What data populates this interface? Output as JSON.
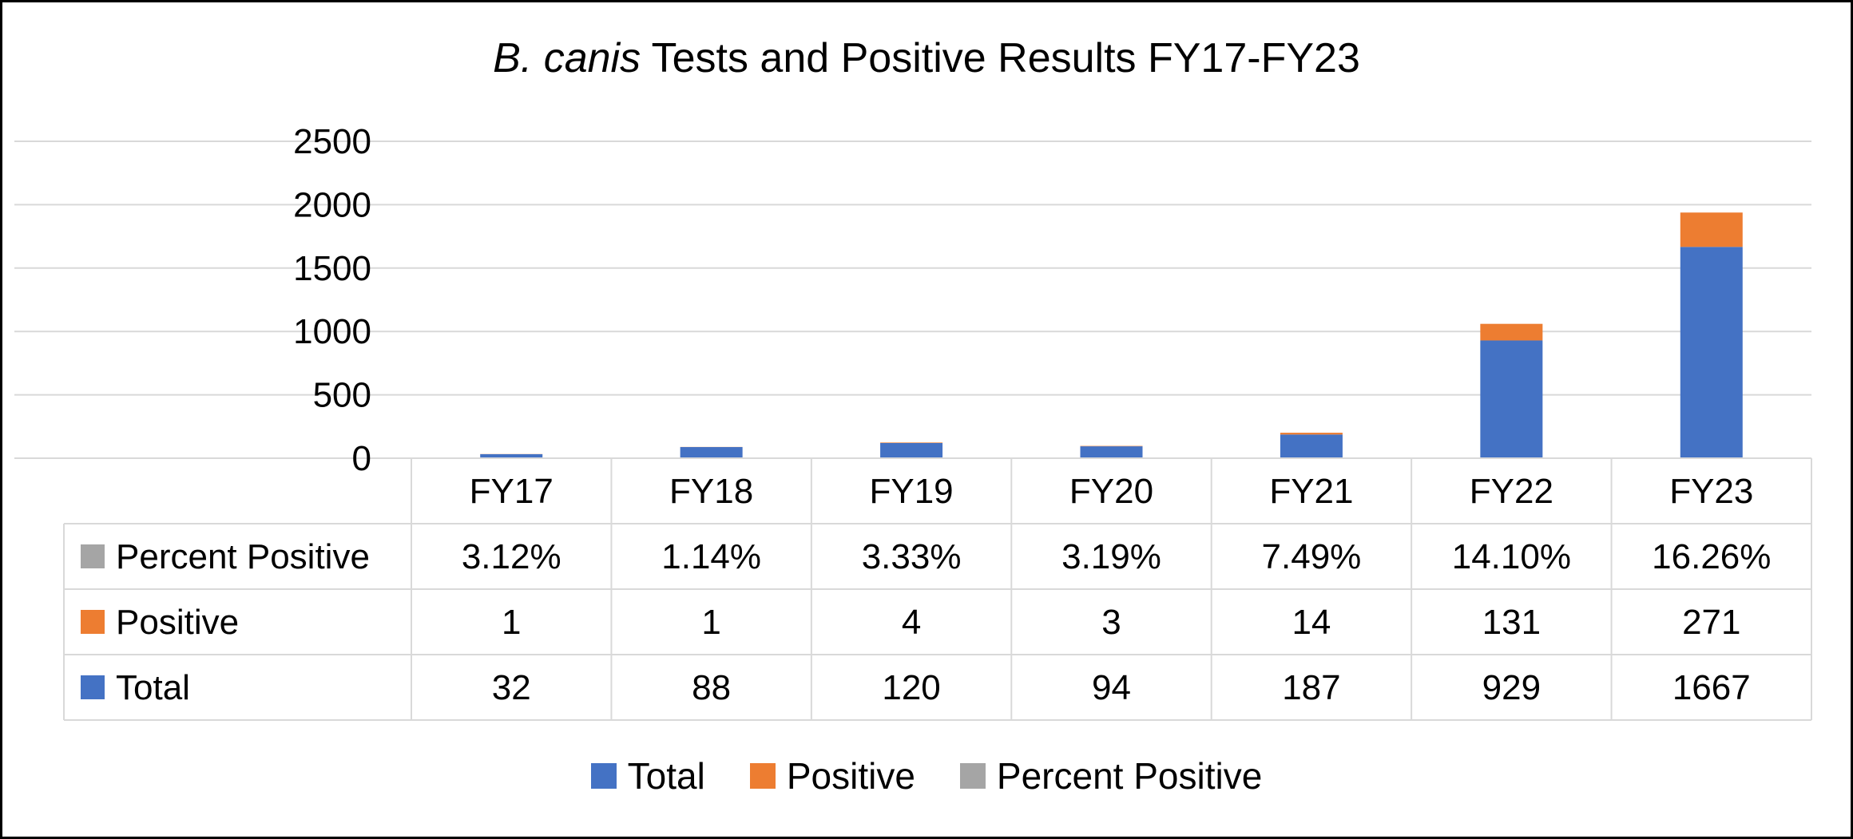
{
  "chart_data": {
    "type": "bar",
    "stacked": true,
    "title_italic": "B. canis",
    "title_rest": " Tests and Positive Results FY17-FY23",
    "categories": [
      "FY17",
      "FY18",
      "FY19",
      "FY20",
      "FY21",
      "FY22",
      "FY23"
    ],
    "ylim": [
      0,
      2500
    ],
    "yticks": [
      "0",
      "500",
      "1000",
      "1500",
      "2000",
      "2500"
    ],
    "grid": true,
    "legend_position": "bottom",
    "series": [
      {
        "name": "Total",
        "color": "#4472C4",
        "values": [
          32,
          88,
          120,
          94,
          187,
          929,
          1667
        ],
        "labels": [
          "32",
          "88",
          "120",
          "94",
          "187",
          "929",
          "1667"
        ]
      },
      {
        "name": "Positive",
        "color": "#ED7D31",
        "values": [
          1,
          1,
          4,
          3,
          14,
          131,
          271
        ],
        "labels": [
          "1",
          "1",
          "4",
          "3",
          "14",
          "131",
          "271"
        ]
      },
      {
        "name": "Percent Positive",
        "color": "#A5A5A5",
        "values": [
          3.12,
          1.14,
          3.33,
          3.19,
          7.49,
          14.1,
          16.26
        ],
        "labels": [
          "3.12%",
          "1.14%",
          "3.33%",
          "3.19%",
          "7.49%",
          "14.10%",
          "16.26%"
        ]
      }
    ],
    "table_row_order": [
      "Percent Positive",
      "Positive",
      "Total"
    ]
  }
}
